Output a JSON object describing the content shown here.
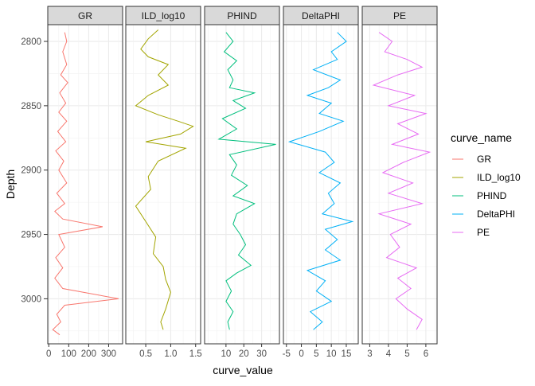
{
  "chart_data": {
    "type": "line",
    "xlabel": "curve_value",
    "ylabel": "Depth",
    "y_reversed": true,
    "ylim": [
      2787,
      3035
    ],
    "yticks": [
      2800,
      2850,
      2900,
      2950,
      3000
    ],
    "grid": true,
    "legend": {
      "title": "curve_name",
      "position": "right",
      "entries": [
        "GR",
        "ILD_log10",
        "PHIND",
        "DeltaPHI",
        "PE"
      ]
    },
    "colors": {
      "GR": "#F8766D",
      "ILD_log10": "#A3A500",
      "PHIND": "#00BF7D",
      "DeltaPHI": "#00B0F6",
      "PE": "#E76BF3"
    },
    "panels": [
      {
        "name": "GR",
        "xlim": [
          -5,
          370
        ],
        "xticks": [
          0,
          100,
          200,
          300
        ],
        "series": [
          {
            "name": "GR",
            "points": [
              [
                80,
                2793
              ],
              [
                90,
                2800
              ],
              [
                70,
                2808
              ],
              [
                90,
                2818
              ],
              [
                60,
                2826
              ],
              [
                95,
                2832
              ],
              [
                55,
                2840
              ],
              [
                85,
                2848
              ],
              [
                50,
                2855
              ],
              [
                90,
                2862
              ],
              [
                45,
                2870
              ],
              [
                85,
                2878
              ],
              [
                35,
                2885
              ],
              [
                75,
                2893
              ],
              [
                50,
                2900
              ],
              [
                90,
                2910
              ],
              [
                40,
                2918
              ],
              [
                80,
                2926
              ],
              [
                30,
                2932
              ],
              [
                70,
                2938
              ],
              [
                270,
                2944
              ],
              [
                50,
                2950
              ],
              [
                80,
                2960
              ],
              [
                35,
                2968
              ],
              [
                70,
                2976
              ],
              [
                30,
                2984
              ],
              [
                70,
                2992
              ],
              [
                350,
                3000
              ],
              [
                80,
                3005
              ],
              [
                40,
                3012
              ],
              [
                60,
                3018
              ],
              [
                20,
                3024
              ],
              [
                55,
                3028
              ]
            ]
          }
        ]
      },
      {
        "name": "ILD_log10",
        "xlim": [
          0.1,
          1.6
        ],
        "xticks": [
          0.5,
          1.0,
          1.5
        ],
        "series": [
          {
            "name": "ILD_log10",
            "points": [
              [
                0.75,
                2791
              ],
              [
                0.55,
                2798
              ],
              [
                0.4,
                2806
              ],
              [
                0.55,
                2812
              ],
              [
                0.95,
                2818
              ],
              [
                0.75,
                2826
              ],
              [
                0.95,
                2834
              ],
              [
                0.55,
                2842
              ],
              [
                0.3,
                2850
              ],
              [
                0.75,
                2857
              ],
              [
                1.15,
                2862
              ],
              [
                1.45,
                2866
              ],
              [
                1.2,
                2872
              ],
              [
                0.5,
                2878
              ],
              [
                1.3,
                2883
              ],
              [
                0.75,
                2893
              ],
              [
                0.55,
                2905
              ],
              [
                0.6,
                2915
              ],
              [
                0.3,
                2928
              ],
              [
                0.5,
                2940
              ],
              [
                0.7,
                2952
              ],
              [
                0.65,
                2965
              ],
              [
                0.85,
                2975
              ],
              [
                0.9,
                2985
              ],
              [
                1.0,
                2995
              ],
              [
                0.9,
                3008
              ],
              [
                0.8,
                3018
              ],
              [
                0.85,
                3024
              ]
            ]
          }
        ]
      },
      {
        "name": "PHIND",
        "xlim": [
          -2,
          40
        ],
        "xticks": [
          10,
          20,
          30
        ],
        "series": [
          {
            "name": "PHIND",
            "points": [
              [
                10,
                2793
              ],
              [
                14,
                2800
              ],
              [
                9,
                2808
              ],
              [
                16,
                2815
              ],
              [
                11,
                2822
              ],
              [
                14,
                2830
              ],
              [
                12,
                2836
              ],
              [
                26,
                2840
              ],
              [
                14,
                2846
              ],
              [
                21,
                2852
              ],
              [
                8,
                2860
              ],
              [
                16,
                2868
              ],
              [
                6,
                2876
              ],
              [
                38,
                2880
              ],
              [
                12,
                2888
              ],
              [
                16,
                2896
              ],
              [
                13,
                2904
              ],
              [
                22,
                2912
              ],
              [
                14,
                2920
              ],
              [
                26,
                2926
              ],
              [
                16,
                2934
              ],
              [
                14,
                2942
              ],
              [
                18,
                2950
              ],
              [
                21,
                2958
              ],
              [
                17,
                2966
              ],
              [
                24,
                2974
              ],
              [
                16,
                2980
              ],
              [
                10,
                2986
              ],
              [
                13,
                2994
              ],
              [
                10,
                3002
              ],
              [
                14,
                3010
              ],
              [
                11,
                3018
              ],
              [
                12,
                3024
              ]
            ]
          }
        ]
      },
      {
        "name": "DeltaPHI",
        "xlim": [
          -6,
          19
        ],
        "xticks": [
          -5,
          0,
          5,
          10,
          15
        ],
        "series": [
          {
            "name": "DeltaPHI",
            "points": [
              [
                12,
                2793
              ],
              [
                15,
                2800
              ],
              [
                10,
                2808
              ],
              [
                12,
                2814
              ],
              [
                4,
                2822
              ],
              [
                13,
                2830
              ],
              [
                9,
                2836
              ],
              [
                2,
                2842
              ],
              [
                10,
                2848
              ],
              [
                6,
                2856
              ],
              [
                14,
                2862
              ],
              [
                6,
                2870
              ],
              [
                -4,
                2878
              ],
              [
                8,
                2886
              ],
              [
                11,
                2894
              ],
              [
                6,
                2902
              ],
              [
                13,
                2910
              ],
              [
                9,
                2918
              ],
              [
                11,
                2926
              ],
              [
                7,
                2934
              ],
              [
                17,
                2940
              ],
              [
                8,
                2946
              ],
              [
                12,
                2954
              ],
              [
                8,
                2962
              ],
              [
                13,
                2970
              ],
              [
                2,
                2978
              ],
              [
                8,
                2986
              ],
              [
                5,
                2994
              ],
              [
                10,
                3002
              ],
              [
                3,
                3010
              ],
              [
                7,
                3018
              ],
              [
                4,
                3024
              ]
            ]
          }
        ]
      },
      {
        "name": "PE",
        "xlim": [
          2.6,
          6.6
        ],
        "xticks": [
          3,
          4,
          5,
          6
        ],
        "series": [
          {
            "name": "PE",
            "points": [
              [
                3.5,
                2793
              ],
              [
                4.2,
                2800
              ],
              [
                3.8,
                2808
              ],
              [
                5.0,
                2814
              ],
              [
                5.8,
                2820
              ],
              [
                4.5,
                2826
              ],
              [
                3.2,
                2834
              ],
              [
                5.4,
                2842
              ],
              [
                4.0,
                2850
              ],
              [
                6.0,
                2856
              ],
              [
                4.5,
                2864
              ],
              [
                5.6,
                2872
              ],
              [
                4.2,
                2880
              ],
              [
                6.2,
                2886
              ],
              [
                4.8,
                2894
              ],
              [
                3.7,
                2902
              ],
              [
                5.3,
                2910
              ],
              [
                4.0,
                2918
              ],
              [
                5.8,
                2926
              ],
              [
                3.5,
                2934
              ],
              [
                5.2,
                2942
              ],
              [
                4.1,
                2950
              ],
              [
                4.6,
                2960
              ],
              [
                3.9,
                2968
              ],
              [
                5.5,
                2976
              ],
              [
                4.5,
                2984
              ],
              [
                5.2,
                2992
              ],
              [
                4.4,
                3000
              ],
              [
                5.0,
                3008
              ],
              [
                5.8,
                3016
              ],
              [
                5.5,
                3024
              ]
            ]
          }
        ]
      }
    ]
  }
}
